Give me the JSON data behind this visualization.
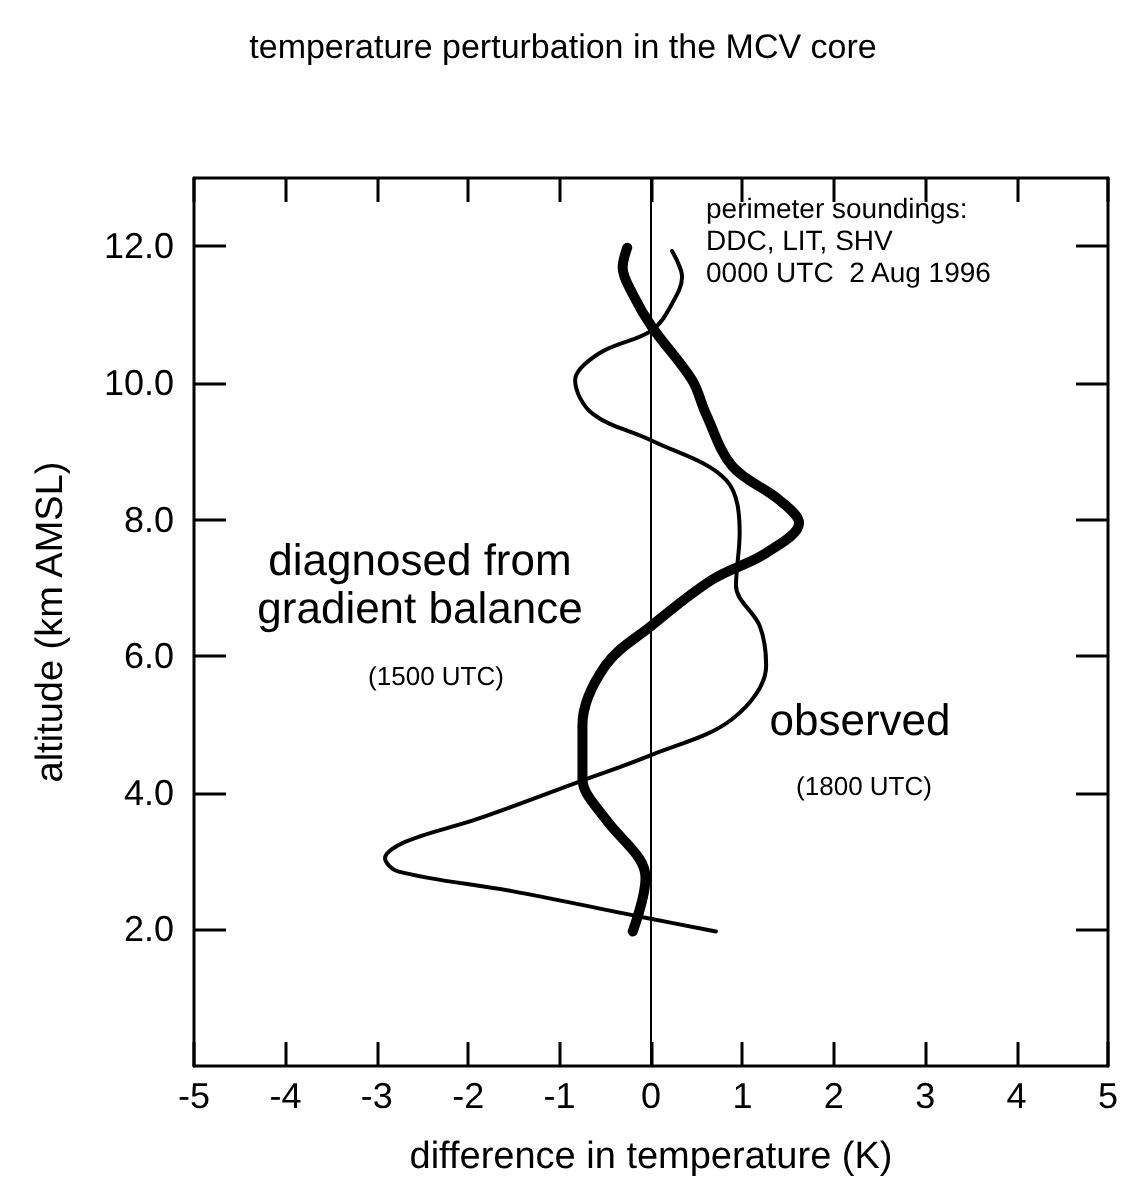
{
  "chart_data": {
    "type": "line",
    "title": "temperature perturbation in the MCV core",
    "xlabel": "difference in temperature (K)",
    "ylabel": "altitude (km AMSL)",
    "xlim": [
      -5,
      5
    ],
    "xticks": [
      -5,
      -4,
      -3,
      -2,
      -1,
      0,
      1,
      2,
      3,
      4,
      5
    ],
    "ylim": [
      0,
      13
    ],
    "yticks": [
      {
        "value": 2,
        "label": "2.0"
      },
      {
        "value": 4,
        "label": "4.0"
      },
      {
        "value": 6,
        "label": "6.0"
      },
      {
        "value": 8,
        "label": "8.0"
      },
      {
        "value": 10,
        "label": "10.0"
      },
      {
        "value": 12,
        "label": "12.0"
      }
    ],
    "grid": false,
    "legend": false,
    "marker": "none",
    "line_style": "solid",
    "ref_lines": [
      {
        "axis": "x",
        "value": 0,
        "color": "#000000"
      }
    ],
    "annotations": [
      "perimeter soundings:\nDDC, LIT, SHV\n0000 UTC  2 Aug 1996",
      "(1500 UTC)",
      "(1800 UTC)"
    ],
    "series": [
      {
        "name": "diagnosed from\ngradient balance",
        "color": "#000000",
        "x": [
          -0.2,
          -0.06,
          -0.13,
          -0.5,
          -0.75,
          -0.75,
          -0.5,
          0,
          0.67,
          1.26,
          1.62,
          1.4,
          0.89,
          0.6,
          0.45,
          0.01,
          -0.2,
          -0.31,
          -0.26
        ],
        "values": [
          1.97,
          2.75,
          3.04,
          3.62,
          4.21,
          4.99,
          5.86,
          6.44,
          7.12,
          7.51,
          7.95,
          8.29,
          8.78,
          9.55,
          10.04,
          10.82,
          11.3,
          11.69,
          11.98
        ]
      },
      {
        "name": "observed",
        "color": "#000000",
        "x": [
          0.71,
          -0.06,
          -1.52,
          -2.77,
          -2.91,
          -2.69,
          -1.89,
          -0.79,
          0,
          0.89,
          1.26,
          1.19,
          0.93,
          0.97,
          0.82,
          0,
          -0.64,
          -0.83,
          -0.57,
          0.01,
          0.23,
          0.34,
          0.23
        ],
        "values": [
          1.97,
          2.17,
          2.56,
          2.85,
          3.04,
          3.28,
          3.62,
          4.16,
          4.55,
          5.08,
          5.86,
          6.44,
          7.03,
          7.8,
          8.58,
          9.16,
          9.55,
          10.04,
          10.43,
          10.77,
          11.16,
          11.55,
          11.93
        ]
      }
    ]
  }
}
